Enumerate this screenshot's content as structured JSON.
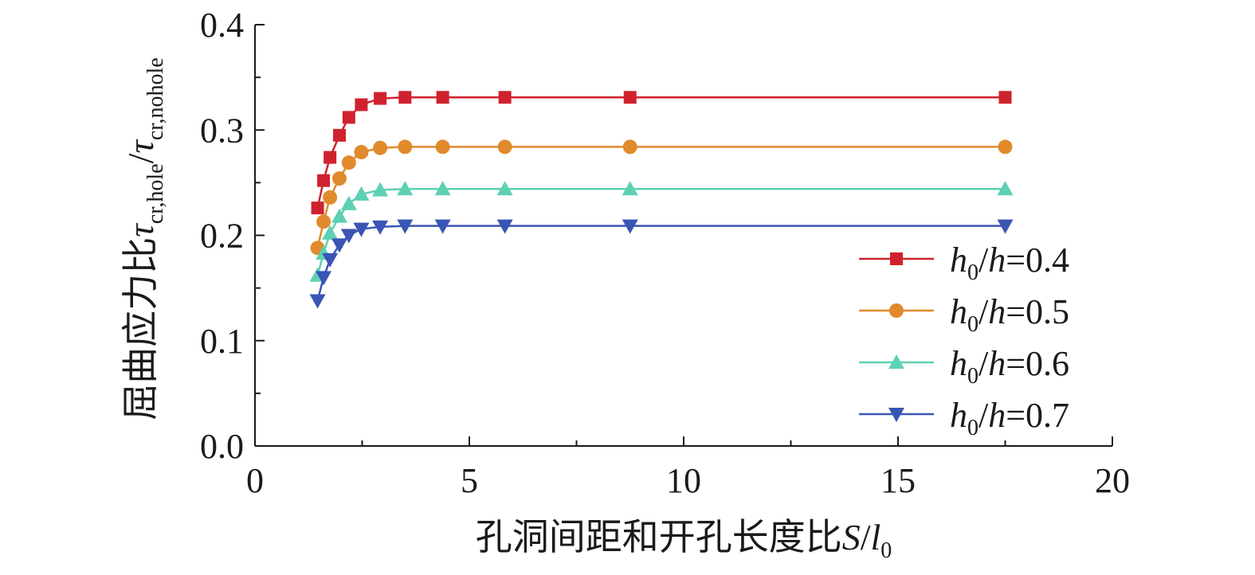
{
  "chart_data": {
    "type": "line",
    "xlabel": {
      "prefix": "孔洞间距和开孔长度比",
      "var": "S",
      "slash": "/",
      "var2": "l",
      "sub": "0"
    },
    "ylabel": {
      "prefix": "屈曲应力比",
      "tau1": "τ",
      "sub1": "cr,hole",
      "slash": "/",
      "tau2": "τ",
      "sub2": "cr,nohole"
    },
    "xlim": [
      0,
      20
    ],
    "ylim": [
      0.0,
      0.4
    ],
    "x_ticks": [
      "0",
      "5",
      "10",
      "15",
      "20"
    ],
    "y_ticks": [
      "0.0",
      "0.1",
      "0.2",
      "0.3",
      "0.4"
    ],
    "x_tick_values": [
      0,
      5,
      10,
      15,
      20
    ],
    "y_tick_values": [
      0.0,
      0.1,
      0.2,
      0.3,
      0.4
    ],
    "grid": false,
    "legend_position": "lower-right",
    "series": [
      {
        "name": "h0/h=0.4",
        "legend": {
          "v1": "h",
          "s1": "0",
          "sl": "/",
          "v2": "h",
          "rest": "=0.4"
        },
        "color": "#d0222e",
        "marker": "square",
        "x": [
          1.46,
          1.6,
          1.75,
          1.97,
          2.19,
          2.48,
          2.92,
          3.5,
          4.38,
          5.83,
          8.75,
          17.5
        ],
        "y": [
          0.226,
          0.252,
          0.274,
          0.295,
          0.312,
          0.324,
          0.33,
          0.331,
          0.331,
          0.331,
          0.331,
          0.331
        ]
      },
      {
        "name": "h0/h=0.5",
        "legend": {
          "v1": "h",
          "s1": "0",
          "sl": "/",
          "v2": "h",
          "rest": "=0.5"
        },
        "color": "#e08a2c",
        "marker": "circle",
        "x": [
          1.46,
          1.6,
          1.75,
          1.97,
          2.19,
          2.48,
          2.92,
          3.5,
          4.38,
          5.83,
          8.75,
          17.5
        ],
        "y": [
          0.188,
          0.213,
          0.236,
          0.254,
          0.269,
          0.279,
          0.283,
          0.284,
          0.284,
          0.284,
          0.284,
          0.284
        ]
      },
      {
        "name": "h0/h=0.6",
        "legend": {
          "v1": "h",
          "s1": "0",
          "sl": "/",
          "v2": "h",
          "rest": "=0.6"
        },
        "color": "#5ed0b4",
        "marker": "triangle-up",
        "x": [
          1.46,
          1.6,
          1.75,
          1.97,
          2.19,
          2.48,
          2.92,
          3.5,
          4.38,
          5.83,
          8.75,
          17.5
        ],
        "y": [
          0.162,
          0.183,
          0.202,
          0.218,
          0.23,
          0.239,
          0.243,
          0.244,
          0.244,
          0.244,
          0.244,
          0.244
        ]
      },
      {
        "name": "h0/h=0.7",
        "legend": {
          "v1": "h",
          "s1": "0",
          "sl": "/",
          "v2": "h",
          "rest": "=0.7"
        },
        "color": "#3a55b4",
        "marker": "triangle-down",
        "x": [
          1.46,
          1.6,
          1.75,
          1.97,
          2.19,
          2.48,
          2.92,
          3.5,
          4.38,
          5.83,
          8.75,
          17.5
        ],
        "y": [
          0.138,
          0.16,
          0.177,
          0.191,
          0.2,
          0.206,
          0.208,
          0.209,
          0.209,
          0.209,
          0.209,
          0.209
        ]
      }
    ]
  }
}
